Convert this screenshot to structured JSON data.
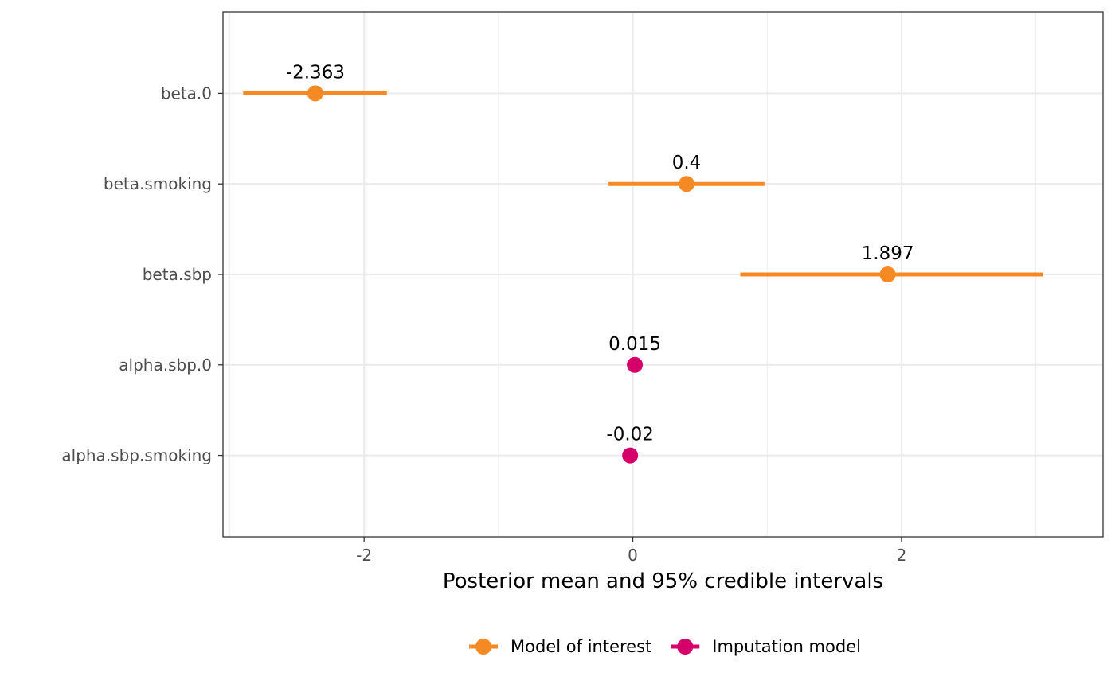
{
  "chart_data": {
    "type": "scatter",
    "xlabel": "Posterior mean and 95% credible intervals",
    "ylabel": "",
    "xlim": [
      -3.05,
      3.5
    ],
    "x_ticks": [
      -2,
      0,
      2
    ],
    "x_minor_ticks": [
      -3,
      -1,
      1,
      3
    ],
    "grid": true,
    "legend_placement": "bottom",
    "categories": [
      "beta.0",
      "beta.smoking",
      "beta.sbp",
      "alpha.sbp.0",
      "alpha.sbp.smoking"
    ],
    "series": [
      {
        "name": "Model of interest",
        "color": "#F58A25",
        "points": [
          {
            "category": "beta.0",
            "mean": -2.363,
            "lower": -2.9,
            "upper": -1.83,
            "label": "-2.363"
          },
          {
            "category": "beta.smoking",
            "mean": 0.4,
            "lower": -0.18,
            "upper": 0.98,
            "label": "0.4"
          },
          {
            "category": "beta.sbp",
            "mean": 1.897,
            "lower": 0.8,
            "upper": 3.05,
            "label": "1.897"
          }
        ]
      },
      {
        "name": "Imputation model",
        "color": "#D6006A",
        "points": [
          {
            "category": "alpha.sbp.0",
            "mean": 0.015,
            "lower": 0.015,
            "upper": 0.015,
            "label": "0.015"
          },
          {
            "category": "alpha.sbp.smoking",
            "mean": -0.02,
            "lower": -0.02,
            "upper": -0.02,
            "label": "-0.02"
          }
        ]
      }
    ]
  }
}
